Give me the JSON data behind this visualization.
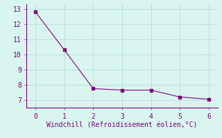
{
  "x": [
    0,
    1,
    2,
    3,
    4,
    5,
    6
  ],
  "y": [
    12.8,
    10.3,
    7.75,
    7.65,
    7.65,
    7.2,
    7.05
  ],
  "line_color": "#800080",
  "marker": "s",
  "marker_size": 2.5,
  "xlabel": "Windchill (Refroidissement éolien,°C)",
  "xlim": [
    -0.3,
    6.3
  ],
  "ylim": [
    6.5,
    13.3
  ],
  "yticks": [
    7,
    8,
    9,
    10,
    11,
    12,
    13
  ],
  "xticks": [
    0,
    1,
    2,
    3,
    4,
    5,
    6
  ],
  "bg_color": "#d8f5ef",
  "grid_color": "#b8ddd6",
  "label_color": "#800080",
  "spine_color": "#800080",
  "xlabel_fontsize": 7,
  "tick_fontsize": 7
}
